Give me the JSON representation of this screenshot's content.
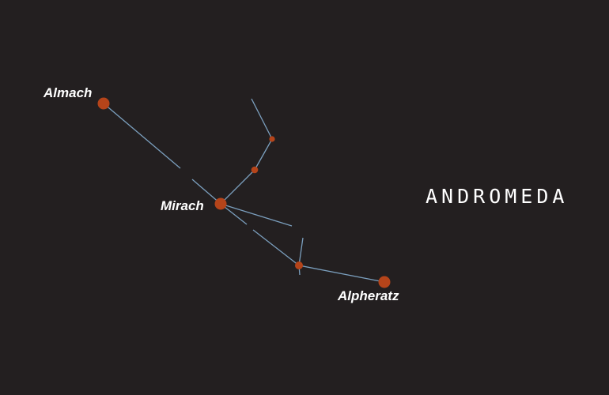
{
  "title": "ANDROMEDA",
  "colors": {
    "background": "#231f20",
    "star": "#b5441a",
    "line": "#7b9fbe",
    "text": "#ffffff"
  },
  "stars": [
    {
      "key": "almach",
      "name": "Almach",
      "magnitude_class": "bright"
    },
    {
      "key": "mirach",
      "name": "Mirach",
      "magnitude_class": "bright"
    },
    {
      "key": "alpheratz",
      "name": "Alpheratz",
      "magnitude_class": "bright"
    },
    {
      "key": "delta",
      "name": "",
      "magnitude_class": "medium"
    },
    {
      "key": "mu",
      "name": "",
      "magnitude_class": "small"
    },
    {
      "key": "nu",
      "name": "",
      "magnitude_class": "small"
    }
  ]
}
